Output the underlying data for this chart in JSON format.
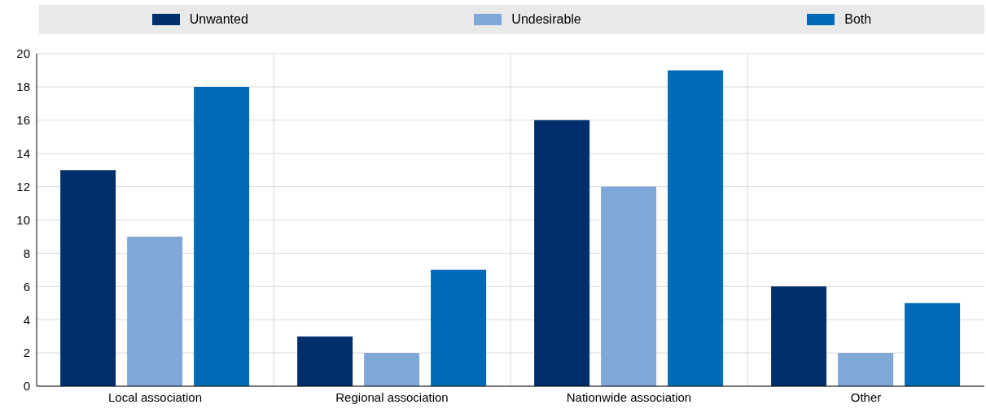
{
  "chart_data": {
    "type": "bar",
    "categories": [
      "Local association",
      "Regional association",
      "Nationwide association",
      "Other"
    ],
    "series": [
      {
        "name": "Unwanted",
        "color": "#002f6c",
        "values": [
          13,
          3,
          16,
          6
        ]
      },
      {
        "name": "Undesirable",
        "color": "#7fa8d9",
        "values": [
          9,
          2,
          12,
          2
        ]
      },
      {
        "name": "Both",
        "color": "#006bb6",
        "values": [
          18,
          7,
          19,
          5
        ]
      }
    ],
    "ylim": [
      0,
      20
    ],
    "yticks": [
      0,
      2,
      4,
      6,
      8,
      10,
      12,
      14,
      16,
      18,
      20
    ],
    "grid": true,
    "legend": "top"
  }
}
